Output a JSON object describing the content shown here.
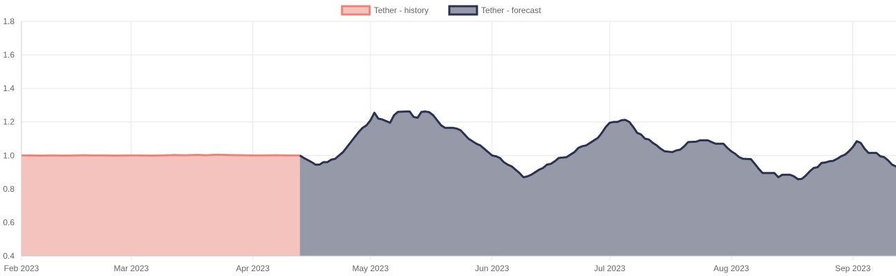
{
  "chart_data": {
    "type": "area",
    "title": "",
    "xlabel": "",
    "ylabel": "",
    "ylim": [
      0.4,
      1.8
    ],
    "yticks": [
      "0.4",
      "0.6",
      "0.8",
      "1.0",
      "1.2",
      "1.4",
      "1.6",
      "1.8"
    ],
    "xticks": [
      {
        "date": "2023-02-01",
        "label": "Feb 2023"
      },
      {
        "date": "2023-03-01",
        "label": "Mar 2023"
      },
      {
        "date": "2023-04-01",
        "label": "Apr 2023"
      },
      {
        "date": "2023-05-01",
        "label": "May 2023"
      },
      {
        "date": "2023-06-01",
        "label": "Jun 2023"
      },
      {
        "date": "2023-07-01",
        "label": "Jul 2023"
      },
      {
        "date": "2023-08-01",
        "label": "Aug 2023"
      },
      {
        "date": "2023-09-01",
        "label": "Sep 2023"
      }
    ],
    "xlim": [
      "2023-02-01",
      "2023-09-12"
    ],
    "grid": true,
    "legend_position": "top",
    "series": [
      {
        "name": "Tether - history",
        "color": "#e8857a",
        "fill": "#f4c3bd",
        "points": [
          [
            "2023-02-01",
            1.0
          ],
          [
            "2023-02-03",
            1.0
          ],
          [
            "2023-02-06",
            0.999
          ],
          [
            "2023-02-09",
            1.0
          ],
          [
            "2023-02-12",
            0.999
          ],
          [
            "2023-02-15",
            1.0
          ],
          [
            "2023-02-17",
            1.001
          ],
          [
            "2023-02-19",
            1.0
          ],
          [
            "2023-02-22",
            1.0
          ],
          [
            "2023-02-25",
            0.999
          ],
          [
            "2023-02-28",
            1.0
          ],
          [
            "2023-03-03",
            1.0
          ],
          [
            "2023-03-06",
            0.999
          ],
          [
            "2023-03-09",
            1.0
          ],
          [
            "2023-03-12",
            1.002
          ],
          [
            "2023-03-15",
            1.001
          ],
          [
            "2023-03-18",
            1.003
          ],
          [
            "2023-03-20",
            1.001
          ],
          [
            "2023-03-23",
            1.004
          ],
          [
            "2023-03-26",
            1.002
          ],
          [
            "2023-03-29",
            1.001
          ],
          [
            "2023-04-01",
            1.0
          ],
          [
            "2023-04-04",
            1.0
          ],
          [
            "2023-04-07",
            1.001
          ],
          [
            "2023-04-10",
            1.0
          ],
          [
            "2023-04-13",
            1.0
          ]
        ]
      },
      {
        "name": "Tether - forecast",
        "color": "#2b3250",
        "fill": "#969aa8",
        "points": [
          [
            "2023-04-13",
            1.0
          ],
          [
            "2023-04-14",
            0.985
          ],
          [
            "2023-04-16",
            0.96
          ],
          [
            "2023-04-17",
            0.945
          ],
          [
            "2023-04-18",
            0.945
          ],
          [
            "2023-04-19",
            0.96
          ],
          [
            "2023-04-20",
            0.96
          ],
          [
            "2023-04-21",
            0.975
          ],
          [
            "2023-04-22",
            0.98
          ],
          [
            "2023-04-24",
            1.02
          ],
          [
            "2023-04-26",
            1.08
          ],
          [
            "2023-04-27",
            1.11
          ],
          [
            "2023-04-28",
            1.14
          ],
          [
            "2023-04-29",
            1.165
          ],
          [
            "2023-04-30",
            1.18
          ],
          [
            "2023-05-01",
            1.21
          ],
          [
            "2023-05-02",
            1.255
          ],
          [
            "2023-05-03",
            1.22
          ],
          [
            "2023-05-04",
            1.215
          ],
          [
            "2023-05-05",
            1.205
          ],
          [
            "2023-05-06",
            1.195
          ],
          [
            "2023-05-07",
            1.24
          ],
          [
            "2023-05-08",
            1.26
          ],
          [
            "2023-05-10",
            1.262
          ],
          [
            "2023-05-11",
            1.262
          ],
          [
            "2023-05-12",
            1.23
          ],
          [
            "2023-05-13",
            1.225
          ],
          [
            "2023-05-14",
            1.26
          ],
          [
            "2023-05-15",
            1.262
          ],
          [
            "2023-05-16",
            1.258
          ],
          [
            "2023-05-17",
            1.24
          ],
          [
            "2023-05-18",
            1.21
          ],
          [
            "2023-05-19",
            1.18
          ],
          [
            "2023-05-20",
            1.165
          ],
          [
            "2023-05-22",
            1.165
          ],
          [
            "2023-05-23",
            1.16
          ],
          [
            "2023-05-24",
            1.15
          ],
          [
            "2023-05-25",
            1.125
          ],
          [
            "2023-05-26",
            1.1
          ],
          [
            "2023-05-27",
            1.085
          ],
          [
            "2023-05-28",
            1.07
          ],
          [
            "2023-05-29",
            1.06
          ],
          [
            "2023-05-30",
            1.04
          ],
          [
            "2023-05-31",
            1.02
          ],
          [
            "2023-06-01",
            1.0
          ],
          [
            "2023-06-02",
            0.995
          ],
          [
            "2023-06-03",
            0.985
          ],
          [
            "2023-06-04",
            0.96
          ],
          [
            "2023-06-05",
            0.945
          ],
          [
            "2023-06-06",
            0.935
          ],
          [
            "2023-06-07",
            0.915
          ],
          [
            "2023-06-08",
            0.895
          ],
          [
            "2023-06-09",
            0.87
          ],
          [
            "2023-06-10",
            0.875
          ],
          [
            "2023-06-11",
            0.885
          ],
          [
            "2023-06-12",
            0.9
          ],
          [
            "2023-06-13",
            0.915
          ],
          [
            "2023-06-14",
            0.925
          ],
          [
            "2023-06-15",
            0.945
          ],
          [
            "2023-06-16",
            0.95
          ],
          [
            "2023-06-17",
            0.965
          ],
          [
            "2023-06-18",
            0.985
          ],
          [
            "2023-06-20",
            0.99
          ],
          [
            "2023-06-21",
            1.005
          ],
          [
            "2023-06-22",
            1.02
          ],
          [
            "2023-06-23",
            1.045
          ],
          [
            "2023-06-24",
            1.055
          ],
          [
            "2023-06-25",
            1.06
          ],
          [
            "2023-06-26",
            1.075
          ],
          [
            "2023-06-27",
            1.09
          ],
          [
            "2023-06-28",
            1.105
          ],
          [
            "2023-06-29",
            1.135
          ],
          [
            "2023-06-30",
            1.17
          ],
          [
            "2023-07-01",
            1.195
          ],
          [
            "2023-07-02",
            1.2
          ],
          [
            "2023-07-03",
            1.2
          ],
          [
            "2023-07-04",
            1.21
          ],
          [
            "2023-07-05",
            1.212
          ],
          [
            "2023-07-06",
            1.2
          ],
          [
            "2023-07-07",
            1.17
          ],
          [
            "2023-07-08",
            1.135
          ],
          [
            "2023-07-09",
            1.125
          ],
          [
            "2023-07-10",
            1.1
          ],
          [
            "2023-07-11",
            1.095
          ],
          [
            "2023-07-12",
            1.075
          ],
          [
            "2023-07-13",
            1.06
          ],
          [
            "2023-07-14",
            1.04
          ],
          [
            "2023-07-15",
            1.025
          ],
          [
            "2023-07-17",
            1.02
          ],
          [
            "2023-07-18",
            1.03
          ],
          [
            "2023-07-19",
            1.035
          ],
          [
            "2023-07-20",
            1.055
          ],
          [
            "2023-07-21",
            1.08
          ],
          [
            "2023-07-23",
            1.082
          ],
          [
            "2023-07-24",
            1.09
          ],
          [
            "2023-07-26",
            1.09
          ],
          [
            "2023-07-27",
            1.08
          ],
          [
            "2023-07-28",
            1.07
          ],
          [
            "2023-07-30",
            1.07
          ],
          [
            "2023-07-31",
            1.045
          ],
          [
            "2023-08-01",
            1.025
          ],
          [
            "2023-08-02",
            1.01
          ],
          [
            "2023-08-03",
            0.99
          ],
          [
            "2023-08-04",
            0.98
          ],
          [
            "2023-08-06",
            0.978
          ],
          [
            "2023-08-07",
            0.95
          ],
          [
            "2023-08-08",
            0.92
          ],
          [
            "2023-08-09",
            0.895
          ],
          [
            "2023-08-12",
            0.895
          ],
          [
            "2023-08-13",
            0.87
          ],
          [
            "2023-08-14",
            0.885
          ],
          [
            "2023-08-16",
            0.885
          ],
          [
            "2023-08-17",
            0.875
          ],
          [
            "2023-08-18",
            0.858
          ],
          [
            "2023-08-19",
            0.86
          ],
          [
            "2023-08-20",
            0.88
          ],
          [
            "2023-08-21",
            0.905
          ],
          [
            "2023-08-22",
            0.925
          ],
          [
            "2023-08-23",
            0.93
          ],
          [
            "2023-08-24",
            0.955
          ],
          [
            "2023-08-25",
            0.958
          ],
          [
            "2023-08-26",
            0.965
          ],
          [
            "2023-08-27",
            0.968
          ],
          [
            "2023-08-28",
            0.98
          ],
          [
            "2023-08-29",
            0.995
          ],
          [
            "2023-08-30",
            1.005
          ],
          [
            "2023-08-31",
            1.025
          ],
          [
            "2023-09-01",
            1.05
          ],
          [
            "2023-09-02",
            1.085
          ],
          [
            "2023-09-03",
            1.075
          ],
          [
            "2023-09-04",
            1.04
          ],
          [
            "2023-09-05",
            1.015
          ],
          [
            "2023-09-07",
            1.015
          ],
          [
            "2023-09-08",
            0.995
          ],
          [
            "2023-09-09",
            0.99
          ],
          [
            "2023-09-10",
            0.97
          ],
          [
            "2023-09-11",
            0.945
          ],
          [
            "2023-09-12",
            0.935
          ],
          [
            "2023-09-13",
            0.915
          ]
        ]
      }
    ]
  },
  "colors": {
    "grid": "#e6e6e6",
    "axis": "#cccccc",
    "text": "#666666"
  }
}
